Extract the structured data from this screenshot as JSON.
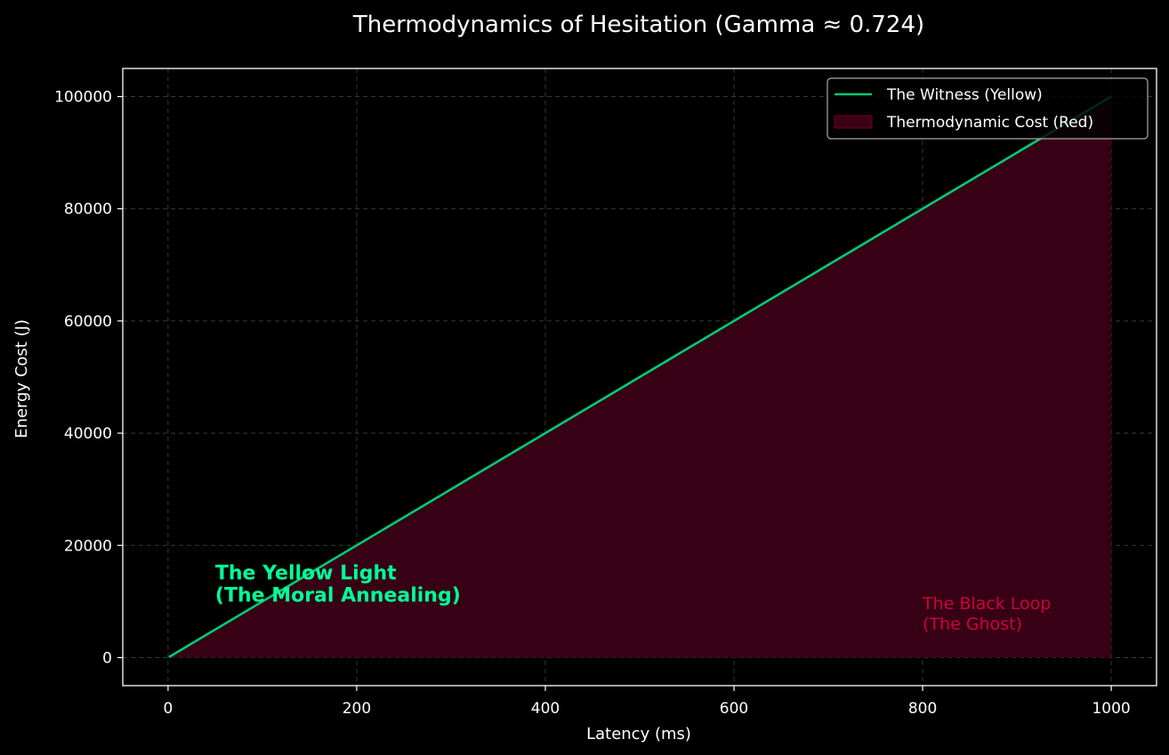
{
  "chart_data": {
    "type": "line",
    "title": "Thermodynamics of Hesitation (Gamma ≈ 0.724)",
    "xlabel": "Latency (ms)",
    "ylabel": "Energy Cost (J)",
    "xlim": [
      -48,
      1048
    ],
    "ylim": [
      -5000,
      105000
    ],
    "xticks": [
      0,
      200,
      400,
      600,
      800,
      1000
    ],
    "yticks": [
      0,
      20000,
      40000,
      60000,
      80000,
      100000
    ],
    "grid": true,
    "legend_position": "top-right",
    "series": [
      {
        "name": "The Witness (Yellow)",
        "kind": "line",
        "color": "#00cc77",
        "x": [
          1,
          1000
        ],
        "y": [
          100,
          100000
        ]
      },
      {
        "name": "Thermodynamic Cost (Red)",
        "kind": "area",
        "color": "#3a0015",
        "edge_color": "#6e0026",
        "x": [
          1,
          1000
        ],
        "y": [
          100,
          100000
        ]
      }
    ],
    "annotations": [
      {
        "text": [
          "The Yellow Light",
          "(The Moral Annealing)"
        ],
        "x": 50,
        "y": 10000,
        "color": "#00ff99",
        "style": "yellow"
      },
      {
        "text": [
          "The Black Loop",
          "(The Ghost)"
        ],
        "x": 800,
        "y": 5000,
        "color": "#d0003f",
        "style": "black"
      }
    ]
  }
}
